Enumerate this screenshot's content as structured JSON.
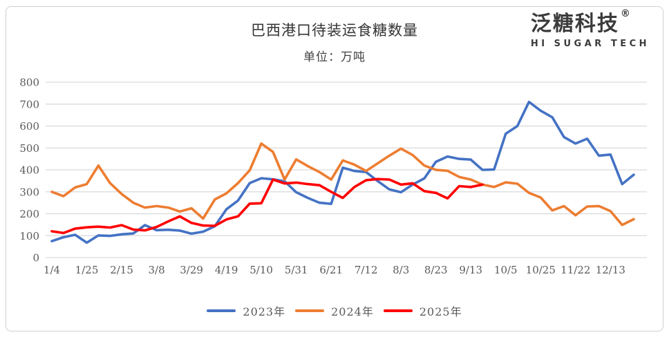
{
  "header": {
    "title": "巴西港口待装运食糖数量",
    "subtitle": "单位：万吨"
  },
  "logo": {
    "name": "泛糖科技",
    "registered_mark": "®",
    "subtitle": "HI SUGAR TECH"
  },
  "legend": [
    {
      "label": "2023年",
      "color": "#4472C4"
    },
    {
      "label": "2024年",
      "color": "#ED7D31"
    },
    {
      "label": "2025年",
      "color": "#FF0000"
    }
  ],
  "chart_data": {
    "type": "line",
    "title": "巴西港口待装运食糖数量",
    "unit_label": "单位：万吨",
    "xlabel": "",
    "ylabel": "",
    "ylim": [
      0,
      800
    ],
    "y_tick_step": 100,
    "y_tick_labels": [
      "0",
      "100",
      "200",
      "300",
      "400",
      "500",
      "600",
      "700",
      "800"
    ],
    "grid": "horizontal",
    "gridline_color": "#D9D9D9",
    "legend_position": "bottom",
    "n_points": 51,
    "x_tick_every": 3,
    "x_tick_labels": [
      "1/4",
      "1/25",
      "2/15",
      "3/8",
      "3/29",
      "4/19",
      "5/10",
      "5/31",
      "6/21",
      "7/12",
      "8/3",
      "8/23",
      "9/13",
      "10/5",
      "10/25",
      "11/22",
      "12/13"
    ],
    "series": [
      {
        "name": "2023年",
        "color": "#4472C4",
        "values": [
          75,
          93,
          104,
          68,
          101,
          99,
          106,
          110,
          148,
          125,
          127,
          123,
          109,
          118,
          143,
          220,
          260,
          340,
          362,
          357,
          348,
          298,
          272,
          250,
          245,
          410,
          395,
          390,
          349,
          311,
          298,
          333,
          361,
          437,
          461,
          450,
          447,
          400,
          402,
          565,
          600,
          710,
          670,
          640,
          550,
          520,
          542,
          465,
          470,
          335,
          378
        ]
      },
      {
        "name": "2024年",
        "color": "#ED7D31",
        "values": [
          300,
          280,
          320,
          335,
          420,
          340,
          290,
          250,
          228,
          235,
          228,
          210,
          225,
          178,
          265,
          293,
          340,
          398,
          520,
          482,
          356,
          448,
          417,
          390,
          356,
          443,
          424,
          395,
          430,
          465,
          497,
          468,
          420,
          400,
          396,
          368,
          356,
          333,
          322,
          343,
          337,
          295,
          274,
          215,
          235,
          193,
          233,
          235,
          212,
          149,
          175
        ]
      },
      {
        "name": "2025年",
        "color": "#FF0000",
        "values": [
          120,
          112,
          132,
          138,
          141,
          137,
          148,
          128,
          124,
          140,
          165,
          188,
          158,
          146,
          145,
          174,
          188,
          246,
          248,
          356,
          338,
          342,
          335,
          330,
          300,
          272,
          322,
          353,
          358,
          356,
          333,
          339,
          303,
          295,
          270,
          326,
          322,
          333
        ]
      }
    ]
  }
}
